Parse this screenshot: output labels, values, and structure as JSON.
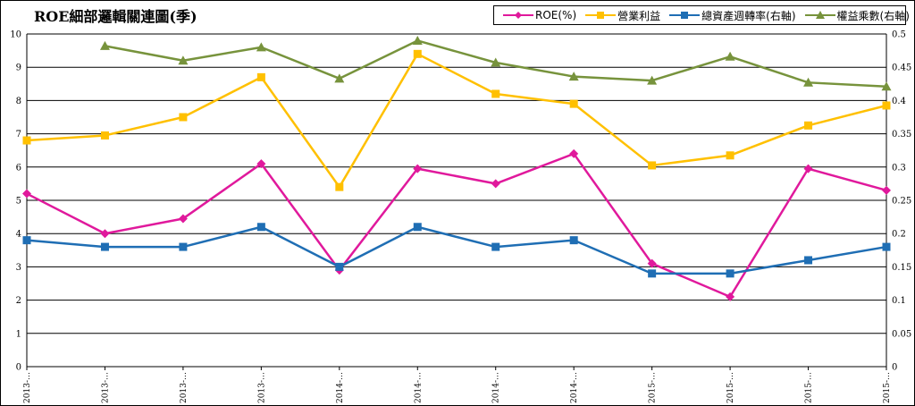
{
  "title": "ROE細部邏輯關連圖(季)",
  "chart_data": {
    "type": "line",
    "categories": [
      "2013-…",
      "2013-…",
      "2013-…",
      "2013-…",
      "2014-…",
      "2014-…",
      "2014-…",
      "2014-…",
      "2015-…",
      "2015-…",
      "2015-…",
      "2015-…"
    ],
    "y_left": {
      "ylim": [
        0,
        10
      ],
      "ticks": [
        0,
        1,
        2,
        3,
        4,
        5,
        6,
        7,
        8,
        9,
        10
      ]
    },
    "y_right": {
      "ylim": [
        0,
        0.5
      ],
      "ticks": [
        "0",
        "0.05",
        "0.1",
        "0.15",
        "0.2",
        "0.25",
        "0.3",
        "0.35",
        "0.4",
        "0.45",
        "0.5"
      ]
    },
    "grid": true,
    "legend_position": "top-right",
    "series": [
      {
        "name": "ROE(%)",
        "axis": "left",
        "marker": "diamond",
        "color": "#e0199c",
        "values": [
          5.2,
          4.0,
          4.45,
          6.1,
          2.9,
          5.95,
          5.5,
          6.4,
          3.1,
          2.1,
          5.95,
          5.3
        ]
      },
      {
        "name": "營業利益",
        "axis": "left",
        "marker": "square",
        "color": "#ffc000",
        "values": [
          6.8,
          6.95,
          7.5,
          8.7,
          5.4,
          9.4,
          8.2,
          7.9,
          6.05,
          6.35,
          7.25,
          7.85
        ]
      },
      {
        "name": "總資產週轉率(右軸)",
        "axis": "right",
        "marker": "square",
        "color": "#1f6eb4",
        "values": [
          0.19,
          0.18,
          0.18,
          0.21,
          0.15,
          0.21,
          0.18,
          0.19,
          0.14,
          0.14,
          0.16,
          0.18
        ]
      },
      {
        "name": "權益乘數(右軸)",
        "axis": "right",
        "marker": "triangle",
        "color": "#77933c",
        "values": [
          null,
          0.482,
          0.46,
          0.48,
          0.433,
          0.49,
          0.457,
          0.436,
          0.43,
          0.466,
          0.427,
          0.421
        ]
      }
    ]
  }
}
